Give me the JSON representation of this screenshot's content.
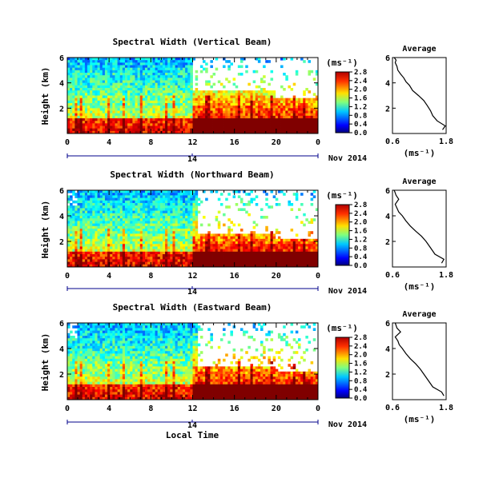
{
  "figure": {
    "date_label": "Nov 2014",
    "x_axis_label": "Local Time",
    "unit_label": "(ms⁻¹)",
    "avg_title": "Average",
    "avg_xlabel": "(ms⁻¹)"
  },
  "chart_data": [
    {
      "type": "heatmap",
      "title": "Spectral Width (Vertical Beam)",
      "ylabel": "Height (km)",
      "xlabel": "Local Time",
      "x_ticks": [
        "0",
        "4",
        "8",
        "12",
        "16",
        "20",
        "0"
      ],
      "x_range": [
        0,
        24
      ],
      "y_ticks": [
        2,
        4,
        6
      ],
      "ylim": [
        0,
        6
      ],
      "day_label": "14",
      "date_label": "Nov 2014",
      "colorbar": {
        "label": "(ms⁻¹)",
        "ticks": [
          "0.0",
          "0.4",
          "0.8",
          "1.2",
          "1.6",
          "2.0",
          "2.4",
          "2.8"
        ],
        "range": [
          0,
          2.8
        ],
        "colormap": "jet"
      },
      "description_regions": {
        "high_values_hours": [
          12,
          24
        ],
        "gap_upper_levels_after_hour": 12
      }
    },
    {
      "type": "heatmap",
      "title": "Spectral Width (Northward Beam)",
      "ylabel": "Height (km)",
      "xlabel": "Local Time",
      "x_ticks": [
        "0",
        "4",
        "8",
        "12",
        "16",
        "20",
        "0"
      ],
      "x_range": [
        0,
        24
      ],
      "y_ticks": [
        2,
        4,
        6
      ],
      "ylim": [
        0,
        6
      ],
      "day_label": "14",
      "date_label": "Nov 2014",
      "colorbar": {
        "label": "(ms⁻¹)",
        "ticks": [
          "0.0",
          "0.4",
          "0.8",
          "1.2",
          "1.6",
          "2.0",
          "2.4",
          "2.8"
        ],
        "range": [
          0,
          2.8
        ],
        "colormap": "jet"
      }
    },
    {
      "type": "heatmap",
      "title": "Spectral Width (Eastward Beam)",
      "ylabel": "Height (km)",
      "xlabel": "Local Time",
      "x_ticks": [
        "0",
        "4",
        "8",
        "12",
        "16",
        "20",
        "0"
      ],
      "x_range": [
        0,
        24
      ],
      "y_ticks": [
        2,
        4,
        6
      ],
      "ylim": [
        0,
        6
      ],
      "day_label": "14",
      "date_label": "Nov 2014",
      "colorbar": {
        "label": "(ms⁻¹)",
        "ticks": [
          "0.0",
          "0.4",
          "0.8",
          "1.2",
          "1.6",
          "2.0",
          "2.4",
          "2.8"
        ],
        "range": [
          0,
          2.8
        ],
        "colormap": "jet"
      }
    },
    {
      "type": "line",
      "title": "Average",
      "xlabel": "(ms⁻¹)",
      "x_ticks": [
        "0.6",
        "1.8"
      ],
      "xlim": [
        0.6,
        1.8
      ],
      "y_ticks": [
        2,
        4,
        6
      ],
      "ylim": [
        0,
        6
      ],
      "x": [
        1.72,
        1.78,
        1.6,
        1.5,
        1.45,
        1.38,
        1.3,
        1.18,
        1.05,
        0.98,
        0.9,
        0.85,
        0.78,
        0.72,
        0.7,
        0.66,
        0.68,
        0.64
      ],
      "y": [
        0.3,
        0.6,
        1.0,
        1.4,
        1.8,
        2.2,
        2.6,
        3.0,
        3.4,
        3.8,
        4.1,
        4.4,
        4.7,
        5.0,
        5.3,
        5.6,
        5.8,
        6.0
      ]
    },
    {
      "type": "line",
      "title": "Average",
      "xlabel": "(ms⁻¹)",
      "x_ticks": [
        "0.6",
        "1.8"
      ],
      "xlim": [
        0.6,
        1.8
      ],
      "y_ticks": [
        2,
        4,
        6
      ],
      "ylim": [
        0,
        6
      ],
      "x": [
        1.7,
        1.75,
        1.55,
        1.45,
        1.35,
        1.25,
        1.12,
        1.0,
        0.9,
        0.82,
        0.74,
        0.7,
        0.66,
        0.74,
        0.68,
        0.64
      ],
      "y": [
        0.3,
        0.6,
        1.0,
        1.5,
        2.0,
        2.4,
        2.8,
        3.2,
        3.6,
        4.0,
        4.3,
        4.6,
        4.9,
        5.3,
        5.6,
        6.0
      ]
    },
    {
      "type": "line",
      "title": "Average",
      "xlabel": "(ms⁻¹)",
      "x_ticks": [
        "0.6",
        "1.8"
      ],
      "xlim": [
        0.6,
        1.8
      ],
      "y_ticks": [
        2,
        4,
        6
      ],
      "ylim": [
        0,
        6
      ],
      "x": [
        1.75,
        1.7,
        1.5,
        1.4,
        1.3,
        1.22,
        1.12,
        1.0,
        0.9,
        0.82,
        0.75,
        0.72,
        0.66,
        0.78,
        0.7,
        0.66
      ],
      "y": [
        0.3,
        0.6,
        1.0,
        1.5,
        2.0,
        2.4,
        2.8,
        3.2,
        3.6,
        4.0,
        4.3,
        4.6,
        4.9,
        5.3,
        5.6,
        6.0
      ]
    }
  ]
}
